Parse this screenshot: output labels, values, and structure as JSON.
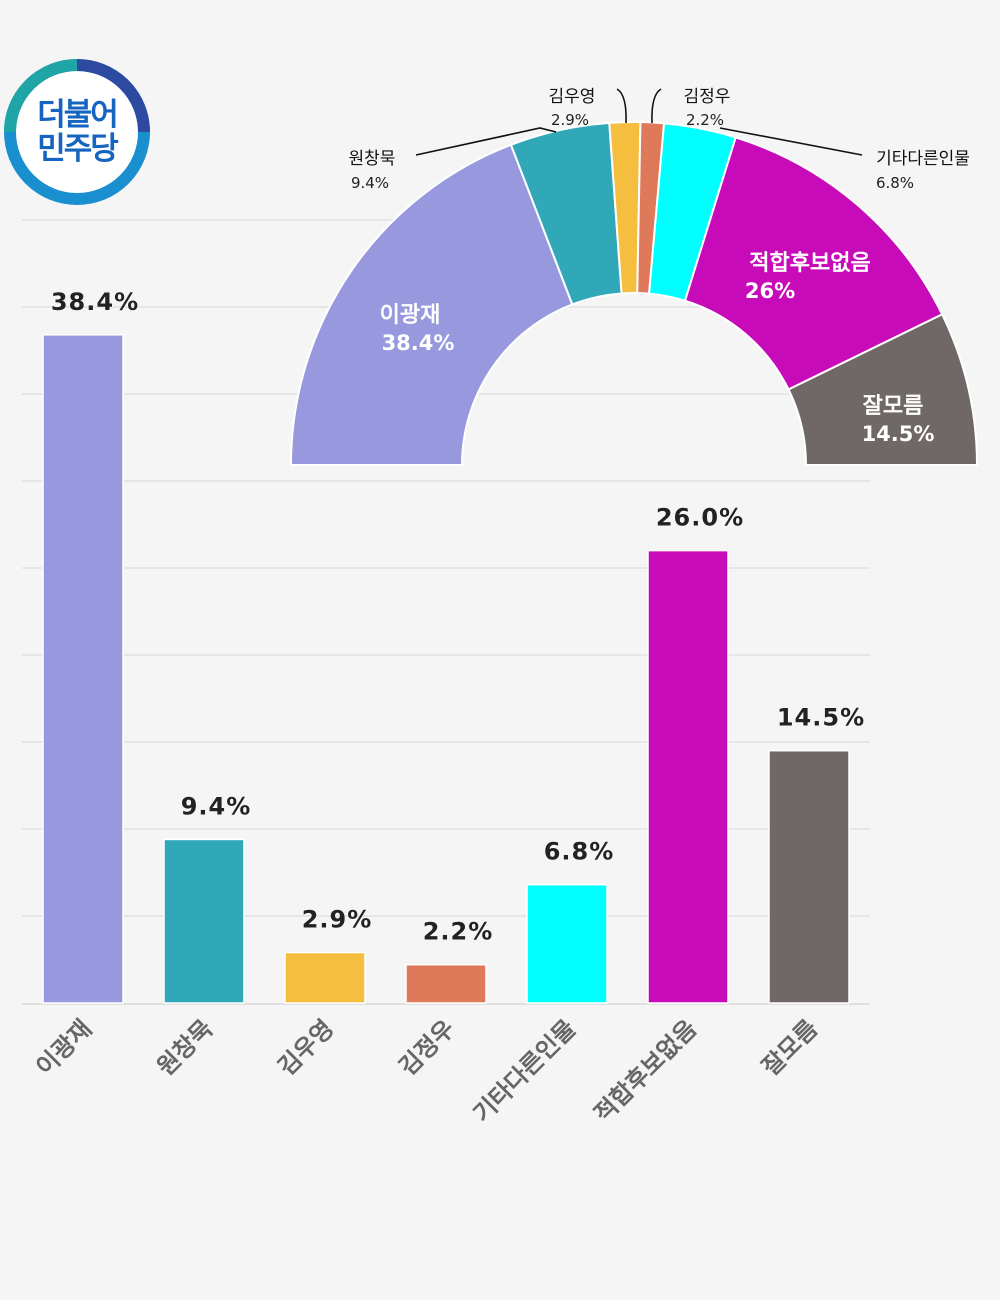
{
  "logo": {
    "line1": "더불어",
    "line2": "민주당"
  },
  "chart_data": [
    {
      "type": "bar",
      "categories": [
        "이광재",
        "원창묵",
        "김우영",
        "김정우",
        "기타다른인물",
        "적합후보없음",
        "잘모름"
      ],
      "values": [
        38.4,
        9.4,
        2.9,
        2.2,
        6.8,
        26.0,
        14.5
      ],
      "data_labels": [
        "38.4%",
        "9.4%",
        "2.9%",
        "2.2%",
        "6.8%",
        "26.0%",
        "14.5%"
      ],
      "colors": [
        "#9898df",
        "#31a8b8",
        "#f5be3f",
        "#de795a",
        "#00ffff",
        "#c80bb8",
        "#706866"
      ],
      "ylim": [
        0,
        45
      ],
      "grid": true,
      "xlabel": "",
      "ylabel": ""
    },
    {
      "type": "pie",
      "style": "semicircle-donut",
      "categories": [
        "이광재",
        "원창묵",
        "김우영",
        "김정우",
        "기타다른인물",
        "적합후보없음",
        "잘모름"
      ],
      "values": [
        38.4,
        9.4,
        2.9,
        2.2,
        6.8,
        26.0,
        14.5
      ],
      "data_labels": [
        "38.4%",
        "9.4%",
        "2.9%",
        "2.2%",
        "6.8%",
        "26%",
        "14.5%"
      ],
      "colors": [
        "#9898df",
        "#31a8b8",
        "#f5be3f",
        "#de795a",
        "#00ffff",
        "#c80bb8",
        "#706866"
      ]
    }
  ]
}
